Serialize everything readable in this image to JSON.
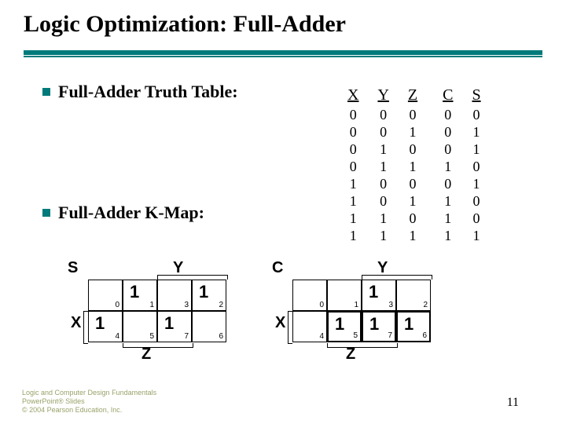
{
  "title": "Logic Optimization: Full-Adder",
  "bullet1": "Full-Adder Truth Table:",
  "bullet2": "Full-Adder K-Map:",
  "pagenum": "11",
  "footer": {
    "l1": "Logic and Computer Design Fundamentals",
    "l2": "PowerPoint® Slides",
    "l3": "© 2004 Pearson Education, Inc."
  },
  "truth": {
    "headers": [
      "X",
      "Y",
      "Z",
      "C",
      "S"
    ],
    "rows": [
      [
        "0",
        "0",
        "0",
        "0",
        "0"
      ],
      [
        "0",
        "0",
        "1",
        "0",
        "1"
      ],
      [
        "0",
        "1",
        "0",
        "0",
        "1"
      ],
      [
        "0",
        "1",
        "1",
        "1",
        "0"
      ],
      [
        "1",
        "0",
        "0",
        "0",
        "1"
      ],
      [
        "1",
        "0",
        "1",
        "1",
        "0"
      ],
      [
        "1",
        "1",
        "0",
        "1",
        "0"
      ],
      [
        "1",
        "1",
        "1",
        "1",
        "1"
      ]
    ]
  },
  "kmapS": {
    "title": "S",
    "yLabel": "Y",
    "xLabel": "X",
    "zLabel": "Z",
    "cells": [
      {
        "idx": "0",
        "val": ""
      },
      {
        "idx": "1",
        "val": "1"
      },
      {
        "idx": "3",
        "val": ""
      },
      {
        "idx": "2",
        "val": "1"
      },
      {
        "idx": "4",
        "val": "1"
      },
      {
        "idx": "5",
        "val": ""
      },
      {
        "idx": "7",
        "val": "1"
      },
      {
        "idx": "6",
        "val": ""
      }
    ]
  },
  "kmapC": {
    "title": "C",
    "yLabel": "Y",
    "xLabel": "X",
    "zLabel": "Z",
    "cells": [
      {
        "idx": "0",
        "val": ""
      },
      {
        "idx": "1",
        "val": ""
      },
      {
        "idx": "3",
        "val": "1"
      },
      {
        "idx": "2",
        "val": ""
      },
      {
        "idx": "4",
        "val": ""
      },
      {
        "idx": "5",
        "val": "1"
      },
      {
        "idx": "7",
        "val": "1"
      },
      {
        "idx": "6",
        "val": "1"
      }
    ],
    "thick": [
      5,
      6,
      7
    ]
  },
  "colors": {
    "accent": "#007a7a",
    "footer": "#9aa26a"
  }
}
